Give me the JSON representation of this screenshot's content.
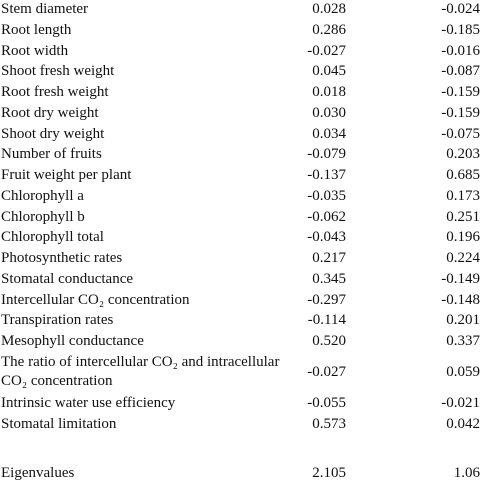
{
  "table": {
    "rows": [
      [
        "Stem diameter",
        "0.028",
        "-0.024"
      ],
      [
        "Root length",
        "0.286",
        "-0.185"
      ],
      [
        "Root width",
        "-0.027",
        "-0.016"
      ],
      [
        "Shoot fresh weight",
        "0.045",
        "-0.087"
      ],
      [
        "Root fresh weight",
        "0.018",
        "-0.159"
      ],
      [
        "Root dry weight",
        "0.030",
        "-0.159"
      ],
      [
        "Shoot dry weight",
        "0.034",
        "-0.075"
      ],
      [
        "Number of fruits",
        "-0.079",
        "0.203"
      ],
      [
        "Fruit weight per plant",
        "-0.137",
        "0.685"
      ],
      [
        "Chlorophyll a",
        "-0.035",
        "0.173"
      ],
      [
        "Chlorophyll b",
        "-0.062",
        "0.251"
      ],
      [
        "Chlorophyll total",
        "-0.043",
        "0.196"
      ],
      [
        "Photosynthetic rates",
        "0.217",
        "0.224"
      ],
      [
        "Stomatal conductance",
        "0.345",
        "-0.149"
      ],
      [
        "Intercellular CO₂ concentration",
        "-0.297",
        "-0.148"
      ],
      [
        "Transpiration rates",
        "-0.114",
        "0.201"
      ],
      [
        "Mesophyll conductance",
        "0.520",
        "0.337"
      ],
      [
        "The ratio of intercellular CO₂ and intracellular CO₂ concentration",
        "-0.027",
        "0.059"
      ],
      [
        "Intrinsic water use efficiency",
        "-0.055",
        "-0.021"
      ],
      [
        "Stomatal limitation",
        "0.573",
        "0.042"
      ]
    ],
    "footer": [
      "Eigenvalues",
      "2.105",
      "1.06"
    ]
  }
}
